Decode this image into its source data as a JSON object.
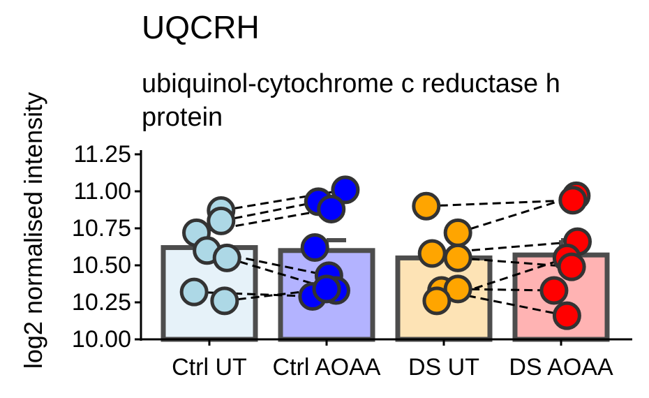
{
  "chart_data": {
    "type": "bar",
    "title": "UQCRH",
    "subtitle_lines": [
      "ubiquinol-cytochrome c reductase h",
      "protein"
    ],
    "ylabel": "log2 normalised intensity",
    "xlabel": "",
    "ylim": [
      10.0,
      11.25
    ],
    "yticks": [
      "10.00",
      "10.25",
      "10.50",
      "10.75",
      "11.00",
      "11.25"
    ],
    "categories": [
      "Ctrl UT",
      "Ctrl AOAA",
      "DS UT",
      "DS AOAA"
    ],
    "values": [
      10.62,
      10.6,
      10.55,
      10.57
    ],
    "error_upper": [
      10.62,
      10.67,
      10.55,
      10.67
    ],
    "bar_fill": [
      "#e6f2f9",
      "#b3b3ff",
      "#fde3b5",
      "#ffb3b3"
    ],
    "point_color": [
      "#add8e6",
      "#0000ff",
      "#ffa500",
      "#ff0000"
    ],
    "grid": false,
    "points": [
      {
        "x": 0,
        "jitter": 0.1,
        "y": 10.87
      },
      {
        "x": 0,
        "jitter": 0.1,
        "y": 10.8
      },
      {
        "x": 0,
        "jitter": -0.11,
        "y": 10.72
      },
      {
        "x": 0,
        "jitter": -0.02,
        "y": 10.6
      },
      {
        "x": 0,
        "jitter": 0.15,
        "y": 10.55
      },
      {
        "x": 0,
        "jitter": -0.13,
        "y": 10.32
      },
      {
        "x": 0,
        "jitter": 0.13,
        "y": 10.26
      },
      {
        "x": 1,
        "jitter": 0.16,
        "y": 11.01
      },
      {
        "x": 1,
        "jitter": -0.07,
        "y": 10.93
      },
      {
        "x": 1,
        "jitter": 0.04,
        "y": 10.88
      },
      {
        "x": 1,
        "jitter": -0.1,
        "y": 10.62
      },
      {
        "x": 1,
        "jitter": 0.02,
        "y": 10.43
      },
      {
        "x": 1,
        "jitter": 0.08,
        "y": 10.33
      },
      {
        "x": 1,
        "jitter": -0.12,
        "y": 10.29
      },
      {
        "x": 1,
        "jitter": 0.0,
        "y": 10.34
      },
      {
        "x": 2,
        "jitter": -0.15,
        "y": 10.9
      },
      {
        "x": 2,
        "jitter": 0.12,
        "y": 10.72
      },
      {
        "x": 2,
        "jitter": -0.1,
        "y": 10.58
      },
      {
        "x": 2,
        "jitter": 0.12,
        "y": 10.55
      },
      {
        "x": 2,
        "jitter": -0.02,
        "y": 10.33
      },
      {
        "x": 2,
        "jitter": 0.12,
        "y": 10.34
      },
      {
        "x": 2,
        "jitter": -0.06,
        "y": 10.26
      },
      {
        "x": 3,
        "jitter": 0.13,
        "y": 10.97
      },
      {
        "x": 3,
        "jitter": 0.1,
        "y": 10.94
      },
      {
        "x": 3,
        "jitter": 0.14,
        "y": 10.66
      },
      {
        "x": 3,
        "jitter": 0.05,
        "y": 10.55
      },
      {
        "x": 3,
        "jitter": 0.09,
        "y": 10.49
      },
      {
        "x": 3,
        "jitter": -0.06,
        "y": 10.33
      },
      {
        "x": 3,
        "jitter": 0.05,
        "y": 10.16
      }
    ],
    "pair_lines": [
      {
        "from": [
          0,
          0.1,
          10.87
        ],
        "to": [
          1,
          0.16,
          11.01
        ]
      },
      {
        "from": [
          0,
          0.1,
          10.8
        ],
        "to": [
          1,
          -0.07,
          10.93
        ]
      },
      {
        "from": [
          0,
          -0.11,
          10.72
        ],
        "to": [
          1,
          0.04,
          10.88
        ]
      },
      {
        "from": [
          0,
          -0.02,
          10.6
        ],
        "to": [
          1,
          0.02,
          10.43
        ]
      },
      {
        "from": [
          0,
          0.15,
          10.55
        ],
        "to": [
          1,
          0.08,
          10.33
        ]
      },
      {
        "from": [
          0,
          -0.13,
          10.32
        ],
        "to": [
          1,
          -0.12,
          10.29
        ]
      },
      {
        "from": [
          0,
          0.13,
          10.26
        ],
        "to": [
          1,
          0.0,
          10.34
        ]
      },
      {
        "from": [
          2,
          -0.15,
          10.9
        ],
        "to": [
          3,
          0.1,
          10.94
        ]
      },
      {
        "from": [
          2,
          0.12,
          10.72
        ],
        "to": [
          3,
          0.13,
          10.97
        ]
      },
      {
        "from": [
          2,
          -0.1,
          10.58
        ],
        "to": [
          3,
          0.14,
          10.66
        ]
      },
      {
        "from": [
          2,
          0.12,
          10.55
        ],
        "to": [
          3,
          0.09,
          10.49
        ]
      },
      {
        "from": [
          2,
          -0.02,
          10.33
        ],
        "to": [
          3,
          0.05,
          10.16
        ]
      },
      {
        "from": [
          2,
          0.12,
          10.34
        ],
        "to": [
          3,
          -0.06,
          10.33
        ]
      },
      {
        "from": [
          2,
          -0.06,
          10.26
        ],
        "to": [
          3,
          0.05,
          10.55
        ]
      }
    ]
  }
}
